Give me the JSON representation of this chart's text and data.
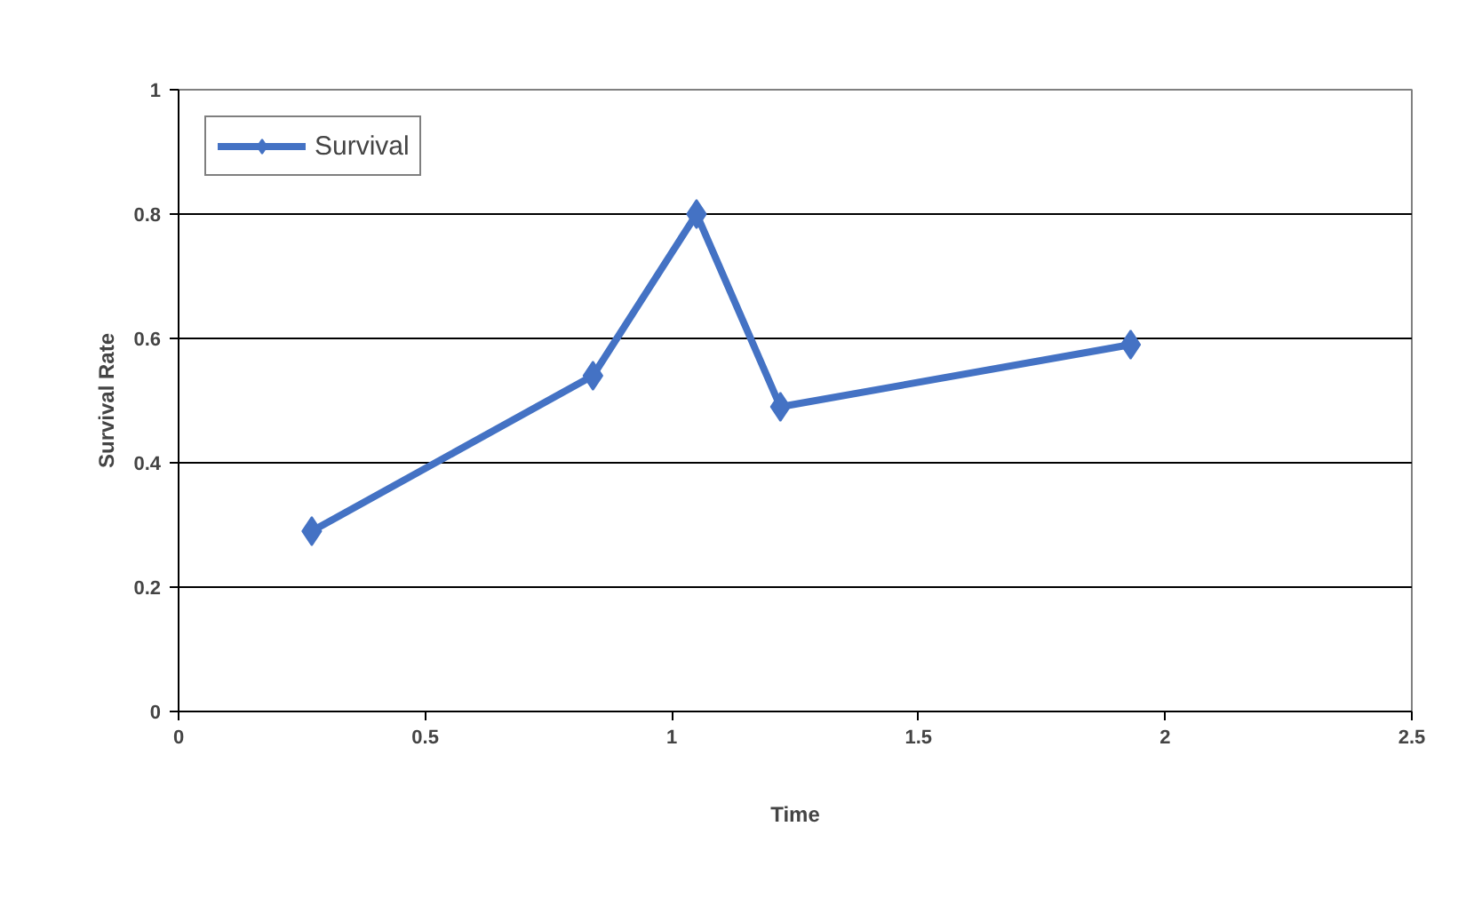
{
  "chart_data": {
    "type": "line",
    "xlabel": "Time",
    "ylabel": "Survival Rate",
    "x": [
      0.27,
      0.84,
      1.05,
      1.22,
      1.93
    ],
    "series": [
      {
        "name": "Survival",
        "color": "#4472c4",
        "values": [
          0.29,
          0.54,
          0.8,
          0.49,
          0.59
        ]
      }
    ],
    "xlim": [
      0,
      2.5
    ],
    "xticks": [
      0,
      0.5,
      1,
      1.5,
      2,
      2.5
    ],
    "ylim": [
      0,
      1
    ],
    "yticks": [
      0,
      0.2,
      0.4,
      0.6,
      0.8,
      1
    ],
    "grid": "y",
    "legend": "top left",
    "marker": "diamond",
    "line_style": "solid"
  }
}
